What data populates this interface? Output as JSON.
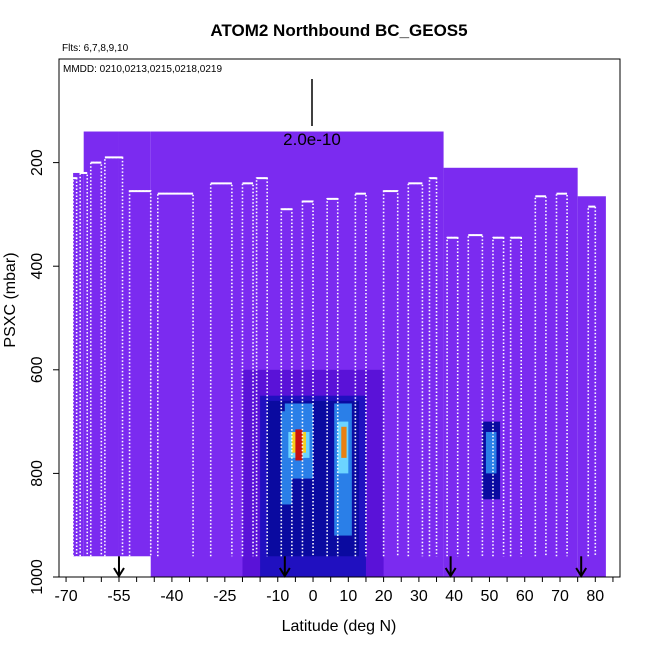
{
  "chart_data": {
    "type": "heatmap",
    "title": "ATOM2 Northbound BC_GEOS5",
    "annotations": {
      "flights": "Flts: 6,7,8,9,10",
      "dates": "MMDD: 0210,0213,0215,0218,0219",
      "scale_label": "2.0e-10"
    },
    "xlabel": "Latitude (deg N)",
    "ylabel": "PSXC (mbar)",
    "xlim": [
      -72,
      87
    ],
    "ylim": [
      1000,
      0
    ],
    "x_ticks": [
      -70,
      -55,
      -40,
      -25,
      -10,
      0,
      10,
      20,
      30,
      40,
      50,
      60,
      70,
      80
    ],
    "y_ticks": [
      200,
      400,
      600,
      800,
      1000
    ],
    "arrows_at_latitude": [
      -55,
      -8,
      39,
      76
    ],
    "colors": {
      "background_field": "#7B2BF0",
      "low": "#5a12d8",
      "medium_low": "#2010c0",
      "medium": "#0a0aa0",
      "mid_high": "#2a7fe8",
      "high_blue": "#6cd4ff",
      "mid": "#ffffff",
      "high": "#f5d020",
      "higher": "#e88010",
      "highest": "#c81010",
      "track": "#ffffff"
    },
    "field_blocks": [
      {
        "lat": [
          -68,
          -65
        ],
        "p": [
          220,
          960
        ]
      },
      {
        "lat": [
          -65,
          -55
        ],
        "p": [
          140,
          960
        ]
      },
      {
        "lat": [
          -55,
          -46
        ],
        "p": [
          140,
          960
        ]
      },
      {
        "lat": [
          -46,
          37
        ],
        "p": [
          140,
          1000
        ]
      },
      {
        "lat": [
          37,
          75
        ],
        "p": [
          210,
          1000
        ]
      },
      {
        "lat": [
          75,
          83
        ],
        "p": [
          265,
          1000
        ]
      }
    ],
    "enhancements": [
      {
        "lat": [
          -20,
          20
        ],
        "p": [
          600,
          1000
        ],
        "level": "low"
      },
      {
        "lat": [
          -15,
          15
        ],
        "p": [
          650,
          1000
        ],
        "level": "medium_low"
      },
      {
        "lat": [
          -13,
          13
        ],
        "p": [
          660,
          960
        ],
        "level": "medium"
      },
      {
        "lat": [
          -9,
          -6
        ],
        "p": [
          680,
          860
        ],
        "level": "mid_high"
      },
      {
        "lat": [
          -8,
          0
        ],
        "p": [
          665,
          810
        ],
        "level": "mid_high"
      },
      {
        "lat": [
          6,
          11
        ],
        "p": [
          665,
          920
        ],
        "level": "mid_high"
      },
      {
        "lat": [
          -7,
          -1
        ],
        "p": [
          720,
          770
        ],
        "level": "high_blue"
      },
      {
        "lat": [
          7,
          10
        ],
        "p": [
          700,
          800
        ],
        "level": "high_blue"
      },
      {
        "lat": [
          -6,
          -2
        ],
        "p": [
          720,
          760
        ],
        "level": "high"
      },
      {
        "lat": [
          -5,
          -3
        ],
        "p": [
          715,
          775
        ],
        "level": "highest"
      },
      {
        "lat": [
          8,
          9.5
        ],
        "p": [
          710,
          770
        ],
        "level": "higher"
      },
      {
        "lat": [
          48,
          53
        ],
        "p": [
          700,
          850
        ],
        "level": "medium"
      },
      {
        "lat": [
          49,
          52
        ],
        "p": [
          720,
          800
        ],
        "level": "mid_high"
      }
    ],
    "track_profiles": [
      {
        "lat": [
          -68,
          -67
        ],
        "p_top": 230
      },
      {
        "lat": [
          -66,
          -64
        ],
        "p_top": 220
      },
      {
        "lat": [
          -63,
          -60
        ],
        "p_top": 200
      },
      {
        "lat": [
          -59,
          -54
        ],
        "p_top": 190
      },
      {
        "lat": [
          -52,
          -46
        ],
        "p_top": 255
      },
      {
        "lat": [
          -44,
          -34
        ],
        "p_top": 260
      },
      {
        "lat": [
          -29,
          -23
        ],
        "p_top": 240
      },
      {
        "lat": [
          -20,
          -17
        ],
        "p_top": 240
      },
      {
        "lat": [
          -16,
          -13
        ],
        "p_top": 230
      },
      {
        "lat": [
          -9,
          -6
        ],
        "p_top": 290
      },
      {
        "lat": [
          -3,
          0
        ],
        "p_top": 275
      },
      {
        "lat": [
          4,
          7
        ],
        "p_top": 270
      },
      {
        "lat": [
          12,
          15
        ],
        "p_top": 260
      },
      {
        "lat": [
          20,
          24
        ],
        "p_top": 255
      },
      {
        "lat": [
          27,
          31
        ],
        "p_top": 240
      },
      {
        "lat": [
          33,
          35
        ],
        "p_top": 230
      },
      {
        "lat": [
          38,
          41
        ],
        "p_top": 345
      },
      {
        "lat": [
          44,
          48
        ],
        "p_top": 340
      },
      {
        "lat": [
          51,
          54
        ],
        "p_top": 345
      },
      {
        "lat": [
          56,
          59
        ],
        "p_top": 345
      },
      {
        "lat": [
          63,
          66
        ],
        "p_top": 265
      },
      {
        "lat": [
          69,
          72
        ],
        "p_top": 260
      },
      {
        "lat": [
          78,
          80
        ],
        "p_top": 285
      }
    ]
  }
}
